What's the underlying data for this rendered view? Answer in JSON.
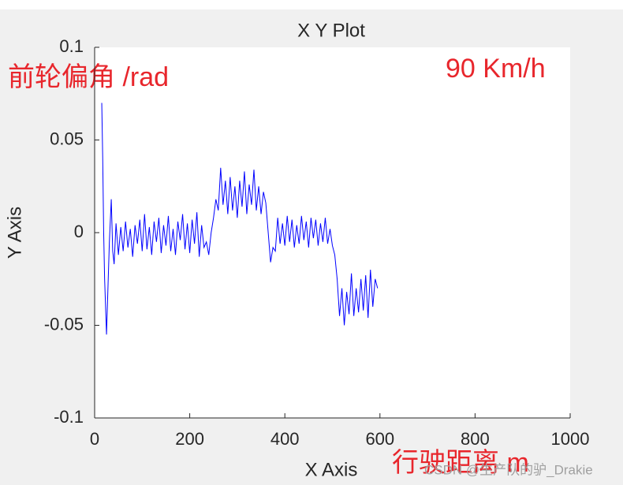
{
  "chart_data": {
    "type": "line",
    "title": "X Y Plot",
    "x_label": "X Axis",
    "y_label": "Y Axis",
    "annotations": [
      "前轮偏角 /rad",
      "90 Km/h",
      "行驶距离 m"
    ],
    "watermark": "CSDN @生产队的驴_Drakie",
    "color": "#0000ff",
    "xlim": [
      0,
      1000
    ],
    "xticks": [
      0,
      200,
      400,
      600,
      800,
      1000
    ],
    "ylim": [
      -0.1,
      0.1
    ],
    "yticks": [
      -0.1,
      -0.05,
      0,
      0.05,
      0.1
    ],
    "x": [
      15,
      17,
      19,
      21,
      23,
      25,
      28,
      31,
      35,
      38,
      41,
      45,
      50,
      55,
      60,
      65,
      70,
      75,
      80,
      85,
      90,
      95,
      100,
      105,
      110,
      115,
      120,
      125,
      130,
      135,
      140,
      145,
      150,
      155,
      160,
      165,
      170,
      175,
      180,
      185,
      190,
      195,
      200,
      205,
      210,
      215,
      220,
      225,
      230,
      235,
      240,
      245,
      250,
      255,
      260,
      265,
      270,
      275,
      280,
      285,
      290,
      295,
      300,
      305,
      310,
      315,
      320,
      325,
      330,
      335,
      340,
      345,
      350,
      355,
      360,
      365,
      370,
      375,
      380,
      385,
      390,
      395,
      400,
      405,
      410,
      415,
      420,
      425,
      430,
      435,
      440,
      445,
      450,
      455,
      460,
      465,
      470,
      475,
      480,
      485,
      490,
      495,
      500,
      505,
      510,
      515,
      520,
      525,
      530,
      535,
      540,
      545,
      550,
      555,
      560,
      565,
      570,
      575,
      580,
      585,
      590,
      595
    ],
    "values": [
      0.07,
      0.04,
      0.0,
      -0.025,
      -0.04,
      -0.055,
      -0.03,
      -0.005,
      0.018,
      -0.01,
      -0.017,
      0.005,
      -0.012,
      0.003,
      -0.01,
      0.006,
      -0.008,
      0.002,
      -0.013,
      0.004,
      -0.006,
      0.007,
      -0.01,
      0.01,
      -0.009,
      0.003,
      -0.012,
      0.006,
      -0.005,
      0.008,
      -0.011,
      0.004,
      -0.007,
      0.009,
      -0.01,
      0.002,
      -0.012,
      0.006,
      -0.004,
      0.01,
      -0.009,
      0.005,
      -0.011,
      0.007,
      -0.006,
      0.011,
      -0.013,
      0.004,
      -0.008,
      -0.005,
      -0.012,
      0.0,
      0.008,
      0.018,
      0.012,
      0.035,
      0.015,
      0.028,
      0.01,
      0.03,
      0.012,
      0.025,
      0.008,
      0.028,
      0.014,
      0.033,
      0.01,
      0.026,
      0.015,
      0.034,
      0.012,
      0.025,
      0.01,
      0.022,
      0.016,
      0.0,
      -0.016,
      -0.008,
      -0.01,
      0.008,
      -0.006,
      0.005,
      -0.007,
      0.009,
      -0.005,
      0.007,
      -0.008,
      0.004,
      -0.006,
      0.009,
      -0.004,
      0.006,
      -0.008,
      0.008,
      -0.003,
      0.007,
      -0.007,
      0.005,
      -0.005,
      0.008,
      -0.006,
      0.002,
      -0.007,
      -0.012,
      -0.025,
      -0.045,
      -0.03,
      -0.05,
      -0.032,
      -0.044,
      -0.022,
      -0.045,
      -0.03,
      -0.043,
      -0.025,
      -0.042,
      -0.023,
      -0.046,
      -0.02,
      -0.04,
      -0.025,
      -0.03
    ]
  }
}
